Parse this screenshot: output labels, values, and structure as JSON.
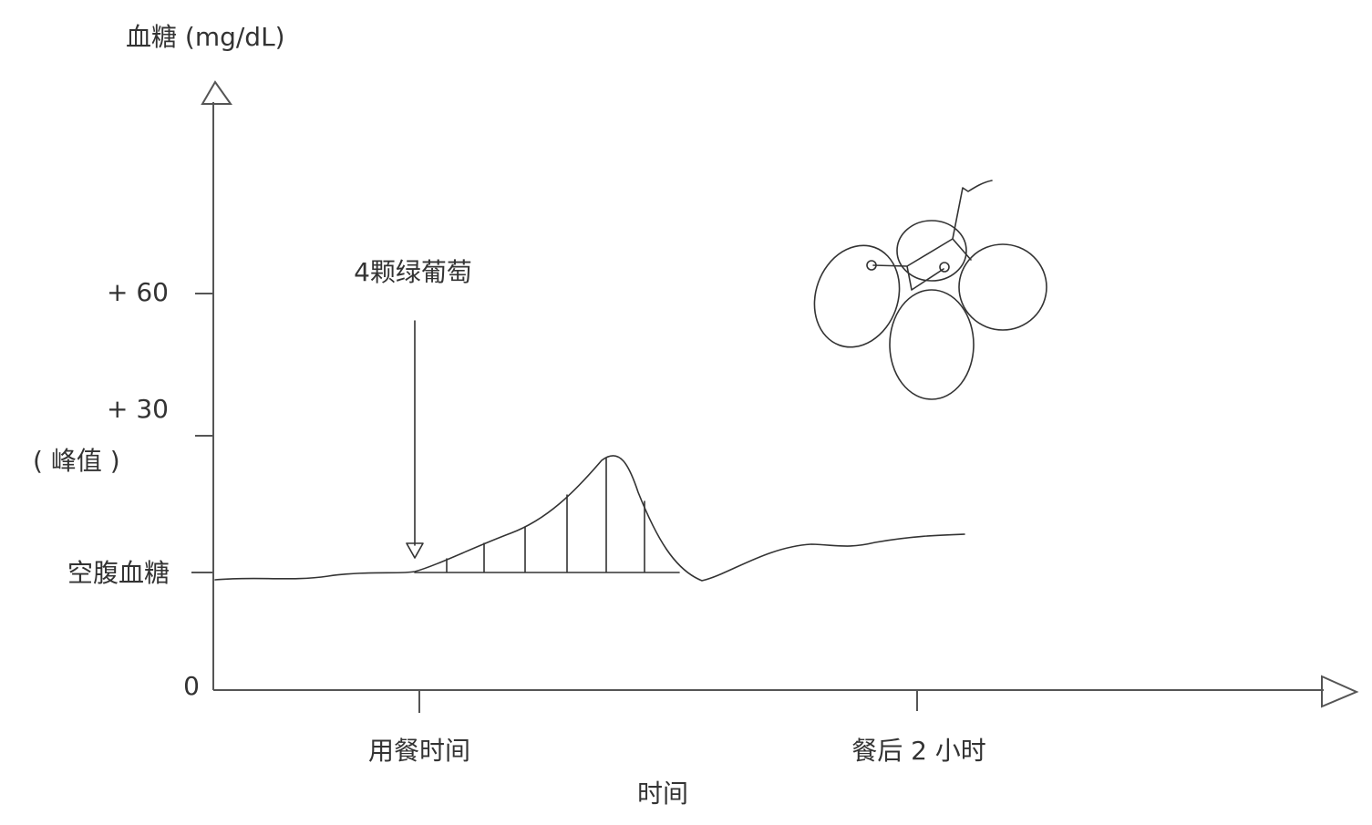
{
  "y_axis": {
    "title": "血糖 (mg/dL)",
    "labels": [
      "+ 60",
      "+ 30",
      "( 峰值 )",
      "空腹血糖",
      "0"
    ]
  },
  "x_axis": {
    "title": "时间",
    "labels": [
      "用餐时间",
      "餐后 2 小时"
    ]
  },
  "annotation": "4颗绿葡萄"
}
